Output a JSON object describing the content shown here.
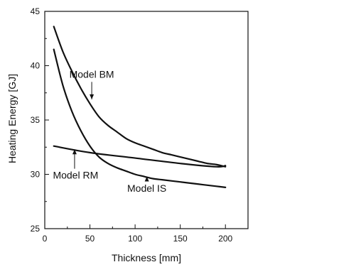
{
  "chart_data": {
    "type": "line",
    "xlabel": "Thickness [mm]",
    "ylabel": "Heating Energy [GJ]",
    "xlim": [
      0,
      225
    ],
    "ylim": [
      25,
      45
    ],
    "x_ticks": [
      0,
      50,
      100,
      150,
      200
    ],
    "y_ticks": [
      25,
      30,
      35,
      40,
      45
    ],
    "grid": false,
    "series": [
      {
        "id": "bm",
        "x": [
          10,
          20,
          30,
          40,
          50,
          60,
          70,
          80,
          90,
          100,
          110,
          120,
          130,
          140,
          150,
          160,
          170,
          180,
          190,
          200
        ],
        "values": [
          43.6,
          41.3,
          39.5,
          37.9,
          36.5,
          35.3,
          34.5,
          33.9,
          33.3,
          32.9,
          32.6,
          32.3,
          32.0,
          31.8,
          31.6,
          31.4,
          31.2,
          31.0,
          30.9,
          30.7
        ]
      },
      {
        "id": "is",
        "x": [
          10,
          20,
          30,
          40,
          50,
          60,
          70,
          80,
          90,
          100,
          110,
          120,
          130,
          140,
          150,
          160,
          170,
          180,
          190,
          200
        ],
        "values": [
          41.5,
          38.2,
          35.8,
          34.0,
          32.6,
          31.6,
          31.0,
          30.6,
          30.3,
          30.0,
          29.8,
          29.6,
          29.5,
          29.4,
          29.3,
          29.2,
          29.1,
          29.0,
          28.9,
          28.8
        ]
      },
      {
        "id": "rm",
        "x": [
          10,
          50,
          100,
          150,
          190,
          200
        ],
        "values": [
          32.6,
          32.0,
          31.5,
          31.0,
          30.7,
          30.8
        ]
      }
    ],
    "annotations": [
      {
        "text": "Model BM",
        "x": 52,
        "y": 38.9,
        "arrow_to": [
          52,
          36.9
        ]
      },
      {
        "text": "Model RM",
        "x": 9,
        "y": 29.6,
        "arrow_to": [
          33,
          32.3
        ]
      },
      {
        "text": "Model IS",
        "x": 113,
        "y": 28.4,
        "arrow_to": [
          113,
          29.8
        ]
      }
    ]
  }
}
